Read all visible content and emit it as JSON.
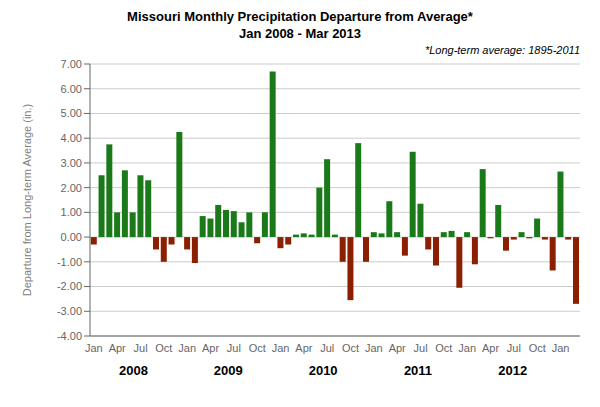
{
  "chart_data": {
    "type": "bar",
    "title": "Missouri Monthly Precipitation Departure from Average*",
    "subtitle": "Jan 2008 - Mar 2013",
    "annotations": [
      "*Long-term average: 1895-2011"
    ],
    "group_labels": [
      "2008",
      "2009",
      "2010",
      "2011",
      "2012"
    ],
    "ylabel": "Departure from Long-term Average (in.)",
    "categories": [
      "Jan",
      null,
      null,
      "Apr",
      null,
      null,
      "Jul",
      null,
      null,
      "Oct",
      null,
      null,
      "Jan",
      null,
      null,
      "Apr",
      null,
      null,
      "Jul",
      null,
      null,
      "Oct",
      null,
      null,
      "Jan",
      null,
      null,
      "Apr",
      null,
      null,
      "Jul",
      null,
      null,
      "Oct",
      null,
      null,
      "Jan",
      null,
      null,
      "Apr",
      null,
      null,
      "Jul",
      null,
      null,
      "Oct",
      null,
      null,
      "Jan",
      null,
      null,
      "Apr",
      null,
      null,
      "Jul",
      null,
      null,
      "Oct",
      null,
      null,
      "Jan",
      null,
      null
    ],
    "values": [
      -0.3,
      2.5,
      3.75,
      1.0,
      2.7,
      1.0,
      2.5,
      2.3,
      -0.5,
      -1.0,
      -0.3,
      4.25,
      -0.5,
      -1.05,
      0.85,
      0.75,
      1.3,
      1.1,
      1.05,
      0.6,
      1.0,
      -0.25,
      1.0,
      6.7,
      -0.45,
      -0.3,
      0.1,
      0.15,
      0.1,
      2.0,
      3.15,
      0.1,
      -1.0,
      -2.55,
      3.8,
      -1.0,
      0.2,
      0.15,
      1.45,
      0.2,
      -0.75,
      3.45,
      1.35,
      -0.5,
      -1.15,
      0.2,
      0.25,
      -2.05,
      0.2,
      -1.1,
      2.75,
      -0.05,
      1.3,
      -0.55,
      -0.1,
      0.2,
      -0.05,
      0.75,
      -0.1,
      -1.35,
      2.65,
      -0.1,
      -2.7
    ],
    "colors": [
      "#8b2000",
      "#1a7a1a",
      "#1a7a1a",
      "#1a7a1a",
      "#1a7a1a",
      "#1a7a1a",
      "#1a7a1a",
      "#1a7a1a",
      "#8b2000",
      "#8b2000",
      "#8b2000",
      "#1a7a1a",
      "#8b2000",
      "#8b2000",
      "#1a7a1a",
      "#1a7a1a",
      "#1a7a1a",
      "#1a7a1a",
      "#1a7a1a",
      "#1a7a1a",
      "#1a7a1a",
      "#8b2000",
      "#1a7a1a",
      "#1a7a1a",
      "#8b2000",
      "#8b2000",
      "#1a7a1a",
      "#1a7a1a",
      "#1a7a1a",
      "#1a7a1a",
      "#1a7a1a",
      "#1a7a1a",
      "#8b2000",
      "#8b2000",
      "#1a7a1a",
      "#8b2000",
      "#1a7a1a",
      "#1a7a1a",
      "#1a7a1a",
      "#1a7a1a",
      "#8b2000",
      "#1a7a1a",
      "#1a7a1a",
      "#8b2000",
      "#8b2000",
      "#1a7a1a",
      "#1a7a1a",
      "#8b2000",
      "#1a7a1a",
      "#8b2000",
      "#1a7a1a",
      "#8b2000",
      "#1a7a1a",
      "#8b2000",
      "#8b2000",
      "#1a7a1a",
      "#8b2000",
      "#1a7a1a",
      "#8b2000",
      "#8b2000",
      "#1a7a1a",
      "#8b2000",
      "#8b2000"
    ],
    "ylim": [
      -4.0,
      7.0
    ],
    "yticks": [
      {
        "value": -4.0,
        "label": "-4.00"
      },
      {
        "value": -3.0,
        "label": "-3.00"
      },
      {
        "value": -2.0,
        "label": "-2.00"
      },
      {
        "value": -1.0,
        "label": "-1.00"
      },
      {
        "value": 0.0,
        "label": "0.00"
      },
      {
        "value": 1.0,
        "label": "1.00"
      },
      {
        "value": 2.0,
        "label": "2.00"
      },
      {
        "value": 3.0,
        "label": "3.00"
      },
      {
        "value": 4.0,
        "label": "4.00"
      },
      {
        "value": 5.0,
        "label": "5.00"
      },
      {
        "value": 6.0,
        "label": "6.00"
      },
      {
        "value": 7.0,
        "label": "7.00"
      }
    ],
    "grid": true
  }
}
